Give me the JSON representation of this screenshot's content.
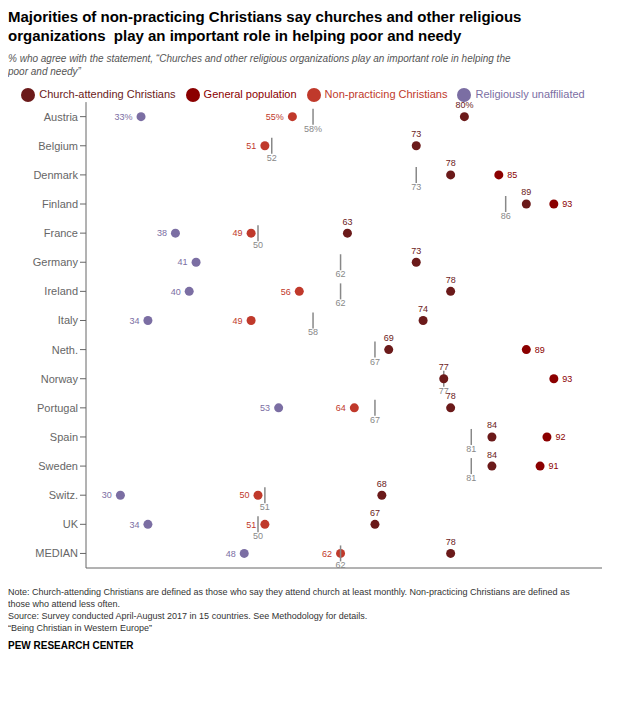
{
  "chart_data": {
    "type": "scatter",
    "title": "Majorities of non-practicing Christians say churches and other religious\norganizations  play an important role in helping poor and needy",
    "subtitle": "% who agree with the statement, “Churches and other religious organizations play an important role in helping the\npoor and needy”",
    "annotations": [
      "Note: Church-attending Christians are defined as those who say they attend church at least monthly. Non-practicing Christians are defined as",
      "those who attend less often.",
      "Source: Survey conducted April-August 2017 in 15 countries. See Methodology for details.",
      "“Being Christian in Western Europe”",
      "PEW RESEARCH CENTER"
    ],
    "categories": [
      "Austria",
      "Belgium",
      "Denmark",
      "Finland",
      "France",
      "Germany",
      "Ireland",
      "Italy",
      "Neth.",
      "Norway",
      "Portugal",
      "Spain",
      "Sweden",
      "Switz.",
      "UK",
      "MEDIAN"
    ],
    "xlim": [
      25,
      100
    ],
    "tick_labels": "y",
    "grid": false,
    "legend": "top",
    "data_labels": true,
    "series": [
      {
        "name": "Religiously unaffiliated",
        "color": "#7b6ea3",
        "marker": "circle",
        "values": [
          33,
          null,
          null,
          null,
          38,
          41,
          40,
          34,
          null,
          null,
          53,
          null,
          null,
          30,
          34,
          48
        ],
        "value_labels": [
          "33%",
          null,
          null,
          null,
          "38",
          "41",
          "40",
          "34",
          null,
          null,
          "53",
          null,
          null,
          "30",
          "34",
          "48"
        ]
      },
      {
        "name": "Non-practicing Christians",
        "color": "#c0392b",
        "marker": "circle",
        "values": [
          55,
          51,
          null,
          null,
          49,
          null,
          56,
          49,
          null,
          null,
          64,
          null,
          null,
          50,
          51,
          62
        ],
        "value_labels": [
          "55%",
          "51",
          null,
          null,
          "49",
          null,
          "56",
          "49",
          null,
          null,
          "64",
          null,
          null,
          "50",
          "51",
          "62"
        ]
      },
      {
        "color": "#888888",
        "marker": "line",
        "values": [
          58,
          52,
          73,
          86,
          50,
          62,
          62,
          58,
          67,
          77,
          67,
          81,
          81,
          51,
          50,
          62
        ],
        "value_labels": [
          "58%",
          "52",
          "73",
          "86",
          "50",
          "62",
          "62",
          "58",
          "67",
          "77",
          "67",
          "81",
          "81",
          "51",
          "50",
          "62"
        ]
      },
      {
        "name": "Church-attending Christians",
        "color": "#6b1a1a",
        "marker": "circle",
        "values": [
          80,
          73,
          78,
          89,
          63,
          73,
          78,
          74,
          69,
          77,
          78,
          84,
          84,
          68,
          67,
          78
        ],
        "value_labels": [
          "80%",
          "73",
          "78",
          "89",
          "63",
          "73",
          "78",
          "74",
          "69",
          "77",
          "78",
          "84",
          "84",
          "68",
          "67",
          "78"
        ]
      },
      {
        "name": "General population",
        "color": "#8b0000",
        "marker": "circle",
        "values": [
          null,
          null,
          85,
          93,
          null,
          null,
          null,
          null,
          89,
          93,
          null,
          92,
          91,
          null,
          null,
          null
        ]
      }
    ]
  }
}
